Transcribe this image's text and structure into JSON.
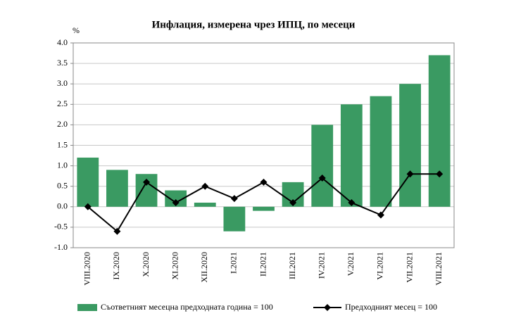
{
  "chart_data": {
    "type": "combo",
    "title": "Инфлация, измерена чрез ИПЦ, по месеци",
    "y_label": "%",
    "categories": [
      "VIII.2020",
      "IX.2020",
      "X.2020",
      "XI.2020",
      "XII.2020",
      "I.2021",
      "II.2021",
      "III.2021",
      "IV.2021",
      "V.2021",
      "VI.2021",
      "VII.2021",
      "VIII.2021"
    ],
    "series": [
      {
        "name": "Съответният месецна предходната година = 100",
        "type": "bar",
        "color": "#3a9a62",
        "values": [
          1.2,
          0.9,
          0.8,
          0.4,
          0.1,
          -0.6,
          -0.1,
          0.6,
          2.0,
          2.5,
          2.7,
          3.0,
          3.7
        ]
      },
      {
        "name": "Предходният месец = 100",
        "type": "line",
        "color": "#000000",
        "values": [
          0.0,
          -0.6,
          0.6,
          0.1,
          0.5,
          0.2,
          0.6,
          0.1,
          0.7,
          0.1,
          -0.2,
          0.8,
          0.8
        ]
      }
    ],
    "ylim": [
      -1.0,
      4.0
    ],
    "yticks": [
      {
        "value": -1.0,
        "label": "-1.0"
      },
      {
        "value": -0.5,
        "label": "-0.5"
      },
      {
        "value": 0,
        "label": "0.0"
      },
      {
        "value": 0.5,
        "label": "0.5"
      },
      {
        "value": 1.0,
        "label": "1.0"
      },
      {
        "value": 1.5,
        "label": "1.5"
      },
      {
        "value": 2.0,
        "label": "2.0"
      },
      {
        "value": 2.5,
        "label": "2.5"
      },
      {
        "value": 3.0,
        "label": "3.0"
      },
      {
        "value": 3.5,
        "label": "3.5"
      },
      {
        "value": 4.0,
        "label": "4.0"
      }
    ],
    "grid": true,
    "legend": "bottom"
  }
}
